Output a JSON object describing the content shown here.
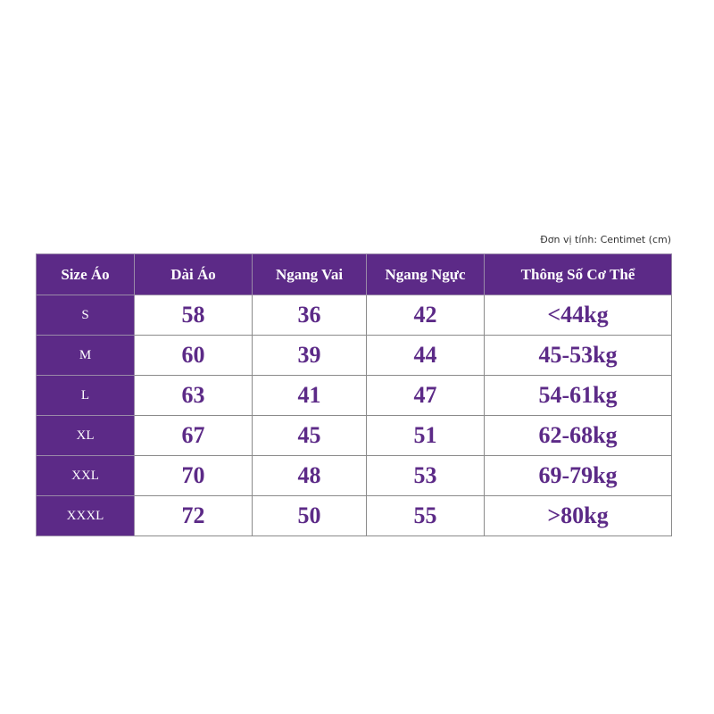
{
  "note": "Đơn vị tính: Centimet (cm)",
  "table": {
    "header": [
      "Size Áo",
      "Dài Áo",
      "Ngang Vai",
      "Ngang Ngực",
      "Thông Số Cơ Thể"
    ],
    "rows": [
      [
        "S",
        58,
        36,
        42,
        "<44kg"
      ],
      [
        "M",
        60,
        39,
        44,
        "45-53kg"
      ],
      [
        "L",
        63,
        41,
        47,
        "54-61kg"
      ],
      [
        "XL",
        67,
        45,
        51,
        "62-68kg"
      ],
      [
        "XXL",
        70,
        48,
        53,
        "69-79kg"
      ],
      [
        "XXXL",
        72,
        50,
        55,
        ">80kg"
      ]
    ]
  }
}
